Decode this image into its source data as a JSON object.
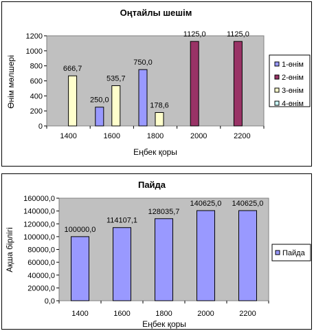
{
  "charts": {
    "top": {
      "colors": [
        "#9999ff",
        "#993366",
        "#ffffcc",
        "#ccffff"
      ],
      "bg": "#c0c0c0"
    },
    "bottom": {
      "colors": [
        "#9999ff"
      ],
      "bg": "#c0c0c0"
    }
  },
  "chart_data": [
    {
      "type": "bar",
      "title": "Оңтайлы шешім",
      "xlabel": "Еңбек қоры",
      "ylabel": "Өнім  мөлшері",
      "categories": [
        "1400",
        "1600",
        "1800",
        "2000",
        "2200"
      ],
      "ylim": [
        0,
        1200
      ],
      "yticks": [
        "0",
        "200",
        "400",
        "600",
        "800",
        "1000",
        "1200"
      ],
      "legend_position": "right",
      "grid": false,
      "series": [
        {
          "name": "1-өнім",
          "values": [
            0,
            250,
            750,
            0,
            0
          ],
          "labels": [
            "",
            "250,0",
            "750,0",
            "",
            ""
          ]
        },
        {
          "name": "2-өнім",
          "values": [
            0,
            0,
            0,
            1125,
            1125
          ],
          "labels": [
            "",
            "",
            "",
            "1125,0",
            "1125,0"
          ]
        },
        {
          "name": "3-өнім",
          "values": [
            666.7,
            535.7,
            178.6,
            0,
            0
          ],
          "labels": [
            "666,7",
            "535,7",
            "178,6",
            "",
            ""
          ]
        },
        {
          "name": "4-өнім",
          "values": [
            0,
            0,
            0,
            0,
            0
          ],
          "labels": [
            "",
            "",
            "",
            "",
            ""
          ]
        }
      ]
    },
    {
      "type": "bar",
      "title": "Пайда",
      "xlabel": "Еңбек қоры",
      "ylabel": "Ақша бірлігі",
      "categories": [
        "1400",
        "1600",
        "1800",
        "2000",
        "2200"
      ],
      "ylim": [
        0,
        160000
      ],
      "yticks": [
        "0,0",
        "20000,0",
        "40000,0",
        "60000,0",
        "80000,0",
        "100000,0",
        "120000,0",
        "140000,0",
        "160000,0"
      ],
      "legend_position": "right",
      "grid": false,
      "series": [
        {
          "name": "Пайда",
          "values": [
            100000,
            114107.1,
            128035.7,
            140625,
            140625
          ],
          "labels": [
            "100000,0",
            "114107,1",
            "128035,7",
            "140625,0",
            "140625,0"
          ]
        }
      ]
    }
  ]
}
